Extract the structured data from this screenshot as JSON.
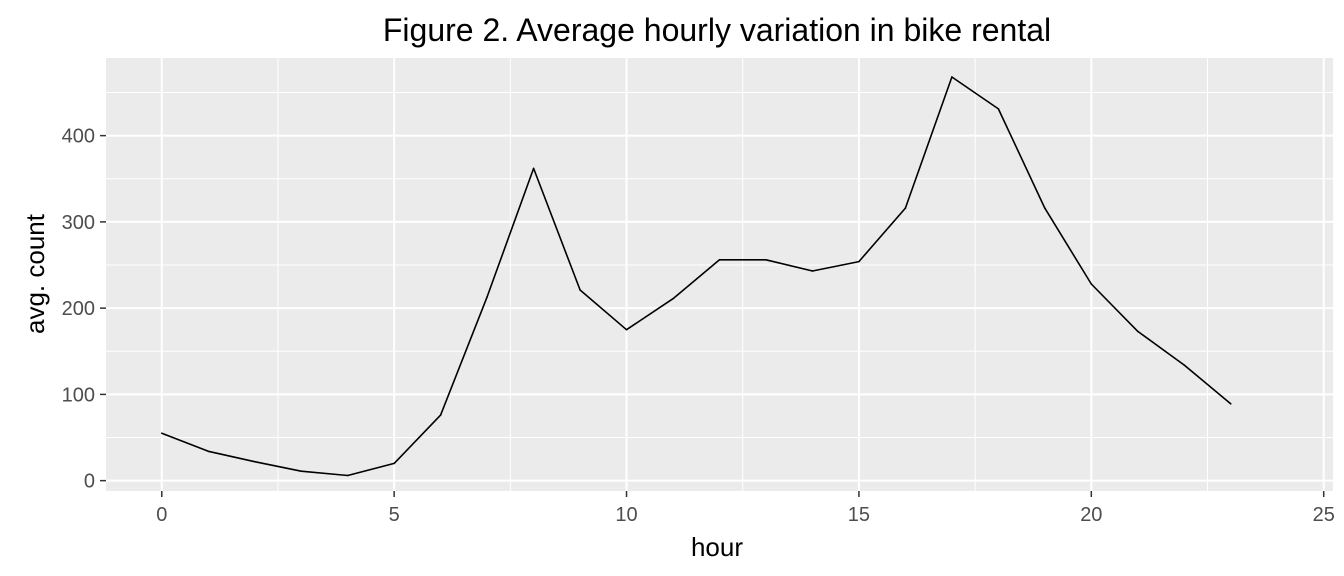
{
  "chart_data": {
    "type": "line",
    "title": "Figure 2. Average hourly variation in bike rental",
    "xlabel": "hour",
    "ylabel": "avg. count",
    "x": [
      0,
      1,
      2,
      3,
      4,
      5,
      6,
      7,
      8,
      9,
      10,
      11,
      12,
      13,
      14,
      15,
      16,
      17,
      18,
      19,
      20,
      21,
      22,
      23
    ],
    "y": [
      55,
      34,
      22,
      11,
      6,
      20,
      76,
      213,
      362,
      221,
      175,
      211,
      256,
      256,
      243,
      254,
      316,
      468,
      431,
      316,
      228,
      173,
      134,
      89
    ],
    "xlim": [
      -1.2,
      25.2
    ],
    "ylim": [
      -12,
      490
    ],
    "x_ticks": [
      0,
      5,
      10,
      15,
      20,
      25
    ],
    "x_tick_labels": [
      "0",
      "5",
      "10",
      "15",
      "20",
      "25"
    ],
    "y_ticks": [
      0,
      100,
      200,
      300,
      400
    ],
    "y_tick_labels": [
      "0",
      "100",
      "200",
      "300",
      "400"
    ],
    "grid": true,
    "line_color": "#000000",
    "panel_background": "#ebebeb",
    "grid_color": "#ffffff",
    "legend": "none"
  }
}
